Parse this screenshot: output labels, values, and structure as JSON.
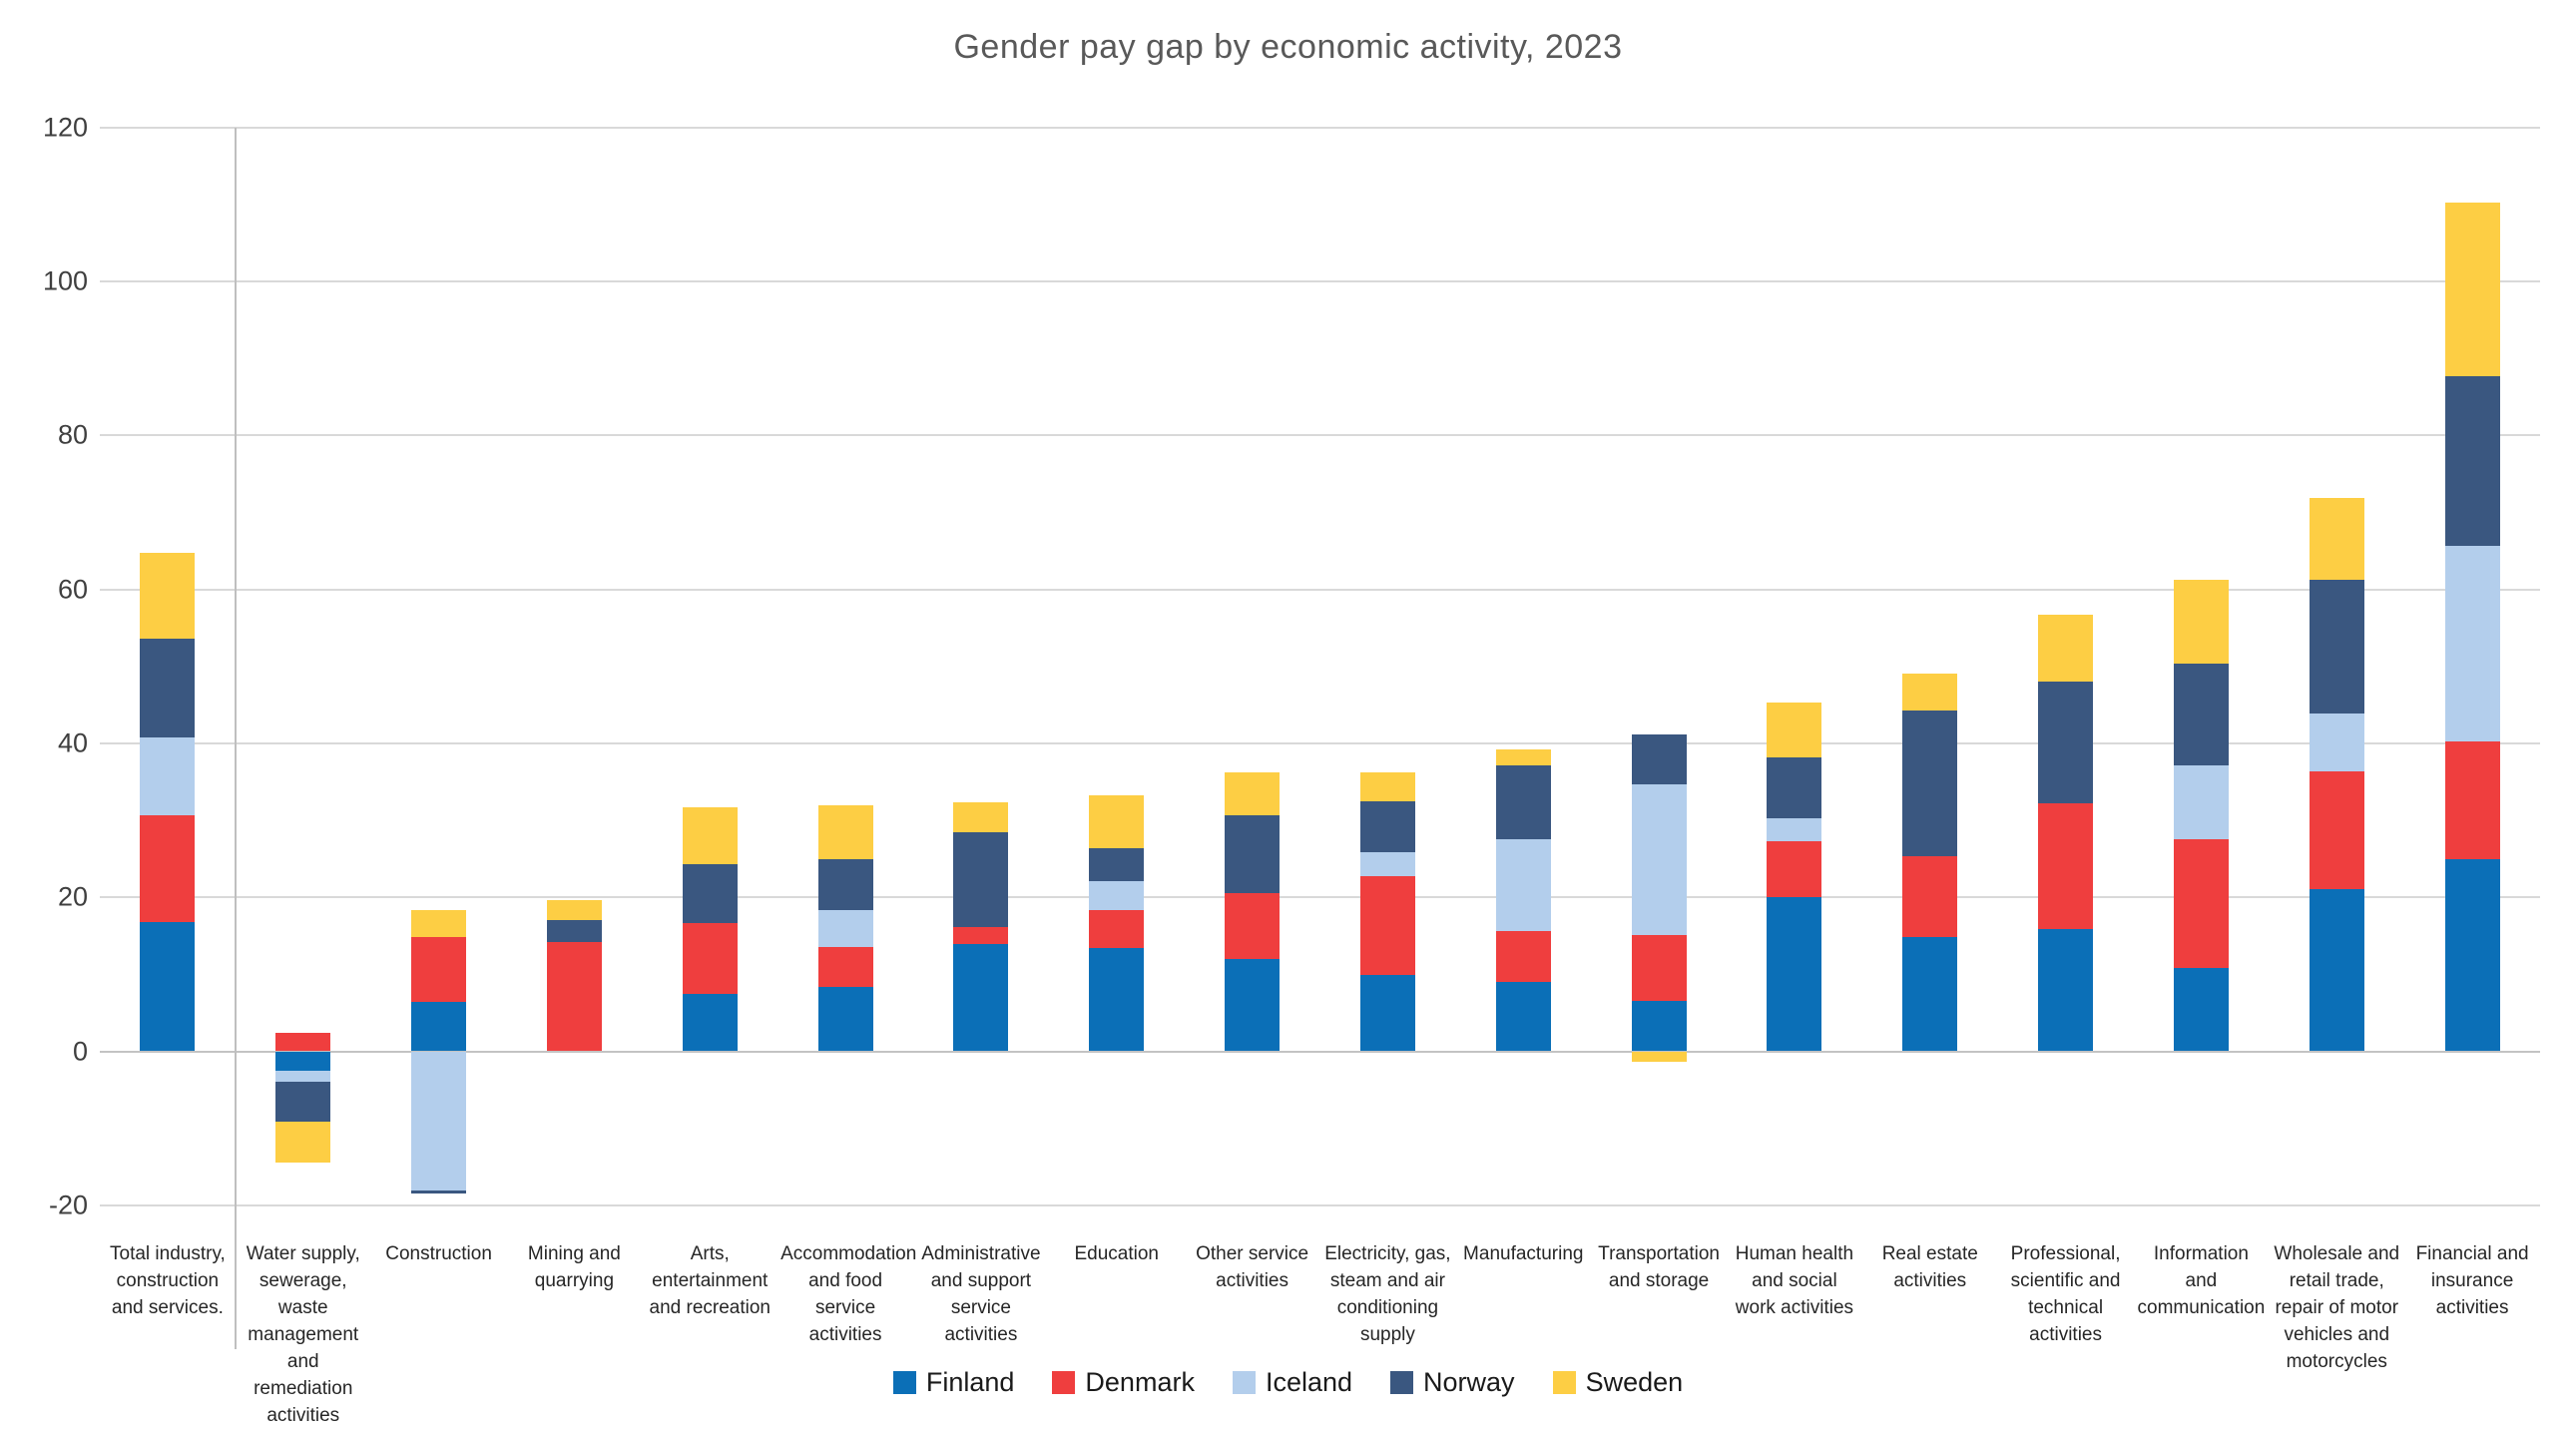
{
  "chart_data": {
    "type": "bar",
    "stacked": true,
    "title": "Gender pay gap by economic activity, 2023",
    "grid": true,
    "legend_position": "bottom",
    "ylim": [
      -20,
      120
    ],
    "ytick_step": 20,
    "ytick_labels": [
      "120",
      "100",
      "80",
      "60",
      "40",
      "20",
      "0",
      "-20"
    ],
    "categories": [
      "Total industry, construction and services.",
      "Water supply, sewerage, waste management and remediation activities",
      "Construction",
      "Mining and quarrying",
      "Arts, entertainment and recreation",
      "Accommodation and food service activities",
      "Administrative and support service activities",
      "Education",
      "Other service activities",
      "Electricity, gas, steam and air conditioning supply",
      "Manufacturing",
      "Transportation and storage",
      "Human health and social work activities",
      "Real estate activities",
      "Professional, scientific and technical activities",
      "Information and communication",
      "Wholesale and retail trade, repair of motor vehicles and motorcycles",
      "Financial and insurance activities"
    ],
    "series": [
      {
        "name": "Finland",
        "color": "#0b6fb7",
        "values": [
          16.8,
          -2.5,
          6.4,
          0,
          7.5,
          8.3,
          13.9,
          13.4,
          12.0,
          9.9,
          9.0,
          6.5,
          20.0,
          14.8,
          15.9,
          10.8,
          21.1,
          24.9
        ]
      },
      {
        "name": "Denmark",
        "color": "#ef3e3e",
        "values": [
          13.9,
          2.4,
          8.4,
          14.2,
          9.1,
          5.2,
          2.2,
          4.9,
          8.6,
          12.9,
          6.6,
          8.6,
          7.3,
          10.6,
          16.3,
          16.7,
          15.2,
          15.3
        ]
      },
      {
        "name": "Iceland",
        "color": "#b3ceec",
        "values": [
          10.0,
          -1.5,
          -18.1,
          0,
          0,
          4.9,
          0,
          3.8,
          0,
          3.0,
          12.0,
          19.6,
          3.0,
          0,
          0,
          9.6,
          7.6,
          25.4
        ]
      },
      {
        "name": "Norway",
        "color": "#3a5780",
        "values": [
          12.9,
          -5.1,
          -0.4,
          2.9,
          7.7,
          6.6,
          12.3,
          4.3,
          10.0,
          6.7,
          9.5,
          6.4,
          7.9,
          18.9,
          15.8,
          13.2,
          17.3,
          22.1
        ]
      },
      {
        "name": "Sweden",
        "color": "#fdce44",
        "values": [
          11.1,
          -5.3,
          3.6,
          2.5,
          7.4,
          6.9,
          4.0,
          6.8,
          5.6,
          3.7,
          2.1,
          -1.3,
          7.1,
          4.8,
          8.7,
          11.0,
          10.7,
          22.5
        ]
      }
    ]
  }
}
